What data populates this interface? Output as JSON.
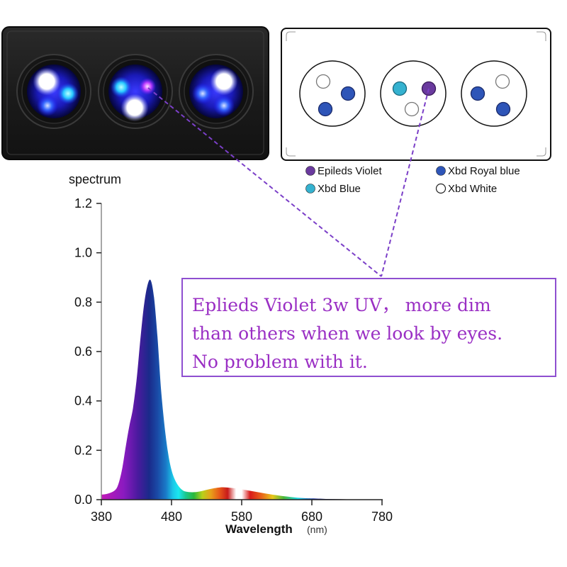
{
  "device_photo": {
    "label": "LED fixture photo",
    "pods": [
      {
        "leds": [
          "white",
          "xbd-blue",
          "royal-blue"
        ]
      },
      {
        "leds": [
          "xbd-blue",
          "violet",
          "white"
        ]
      },
      {
        "leds": [
          "white",
          "royal-blue",
          "royal-blue"
        ]
      }
    ]
  },
  "layout_diagram": {
    "pods": [
      {
        "leds": [
          "xbd-white",
          "xbd-royal-blue",
          "xbd-royal-blue"
        ]
      },
      {
        "leds": [
          "xbd-blue",
          "epileds-violet",
          "xbd-white"
        ]
      },
      {
        "leds": [
          "xbd-white",
          "xbd-royal-blue",
          "xbd-royal-blue"
        ]
      }
    ]
  },
  "legend": [
    {
      "label": "Epileds Violet",
      "color": "#6a3a9e",
      "outline": false
    },
    {
      "label": "Xbd Royal blue",
      "color": "#2e55b8",
      "outline": false
    },
    {
      "label": "Xbd Blue",
      "color": "#35b2d0",
      "outline": false
    },
    {
      "label": "Xbd White",
      "color": "#ffffff",
      "outline": true
    }
  ],
  "callout": {
    "lines": [
      "Eplieds Violet 3w UV，  more dim",
      "than others when we look by eyes.",
      "No problem with it."
    ],
    "color": "#9a2fc4"
  },
  "chart_data": {
    "type": "area",
    "title": "",
    "ylabel": "spectrum",
    "xlabel": "Wavelength",
    "xunit": "(nm)",
    "xlim": [
      380,
      780
    ],
    "ylim": [
      0,
      1.2
    ],
    "xticks": [
      "380",
      "480",
      "580",
      "680",
      "780"
    ],
    "yticks": [
      "0.0",
      "0.2",
      "0.4",
      "0.6",
      "0.8",
      "1.0",
      "1.2"
    ],
    "grid": false,
    "fill": "visible-spectrum gradient",
    "series": [
      {
        "name": "spectrum",
        "x": [
          380,
          390,
          400,
          405,
          410,
          415,
          420,
          425,
          430,
          435,
          440,
          445,
          450,
          455,
          460,
          465,
          470,
          475,
          480,
          485,
          490,
          495,
          500,
          510,
          520,
          530,
          540,
          550,
          555,
          560,
          570,
          580,
          590,
          600,
          610,
          620,
          630,
          640,
          650,
          660,
          670,
          680,
          700,
          720,
          740,
          760,
          780
        ],
        "values": [
          0.02,
          0.025,
          0.04,
          0.07,
          0.13,
          0.22,
          0.3,
          0.37,
          0.48,
          0.63,
          0.77,
          0.86,
          0.89,
          0.82,
          0.66,
          0.45,
          0.3,
          0.19,
          0.12,
          0.08,
          0.055,
          0.04,
          0.033,
          0.03,
          0.033,
          0.04,
          0.046,
          0.05,
          0.05,
          0.049,
          0.046,
          0.042,
          0.037,
          0.032,
          0.027,
          0.022,
          0.018,
          0.014,
          0.011,
          0.008,
          0.006,
          0.005,
          0.003,
          0.002,
          0.001,
          0.001,
          0.0
        ]
      }
    ]
  }
}
